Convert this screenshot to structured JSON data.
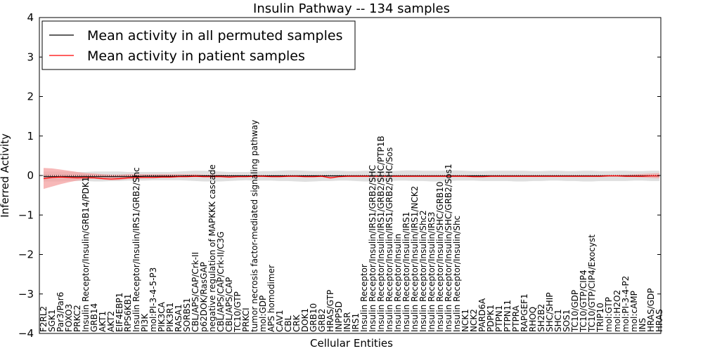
{
  "chart_data": {
    "type": "line",
    "title": "Insulin Pathway -- 134 samples",
    "xlabel": "Cellular Entities",
    "ylabel": "Inferred Activity",
    "ylim": [
      -4,
      4
    ],
    "yticks": [
      "4",
      "3",
      "2",
      "1",
      "0",
      "−1",
      "−2",
      "−3",
      "−4"
    ],
    "ytick_values": [
      4,
      3,
      2,
      1,
      0,
      -1,
      -2,
      -3,
      -4
    ],
    "legend": {
      "location": "top-left",
      "entries": [
        {
          "label": "Mean activity in all permuted samples",
          "color": "#000000"
        },
        {
          "label": "Mean activity in patient samples",
          "color": "#ff0000"
        }
      ]
    },
    "colors": {
      "permuted_line": "#000000",
      "patient_line": "#ff0000",
      "permuted_band": "#d9d9d9",
      "patient_band": "#f4a0a0"
    },
    "categories": [
      "F2RL2",
      "SGK1",
      "Par3/Par6",
      "FOXO3",
      "PRKC2",
      "Insulin Receptor/Insulin/GRB14/PDK1",
      "GRB14",
      "AKT1",
      "AKT2",
      "EIF4EBP1",
      "RPS6KB1",
      "Insulin Receptor/Insulin/IRS1/GRB2/Shc",
      "PI3K",
      "mol:PI-3-4-5-P3",
      "PIK3CA",
      "PIK3R1",
      "RASA1",
      "SORBS1",
      "CBL/APS/CAP/Crk-II",
      "p62DOK/RasGAP",
      "negative regulation of MAPKKK cascade",
      "CBL/APS/CAP/Crk-II/C3G",
      "CBL/APS/CAP",
      "TC10/GTP",
      "PRKCI",
      "tumor necrosis factor-mediated signaling pathway",
      "mol:GDP",
      "APS homodimer",
      "CAV1",
      "CBL",
      "CRK",
      "DOK1",
      "GRB10",
      "GRB2",
      "HRAS/GTP",
      "INPP5D",
      "INSR",
      "IRS1",
      "Insulin Receptor",
      "Insulin Receptor/Insulin/IRS1/GRB2/SHC",
      "Insulin Receptor/Insulin/IRS1/GRB2/SHC/PTP1B",
      "Insulin Receptor/Insulin/IRS1/GRB2/SHC/Sos",
      "Insulin Receptor/Insulin",
      "Insulin Receptor/Insulin/IRS1",
      "Insulin Receptor/Insulin/IRS1/NCK2",
      "Insulin Receptor/Insulin/Shc2",
      "Insulin Receptor/Insulin/IRS3",
      "Insulin Receptor/Insulin/SHC/GRB10",
      "Insulin Receptor/Insulin/SHC/GRB2/Sos1",
      "Insulin Receptor/Insulin/Shc",
      "NCK1",
      "NCK2",
      "PARD6A",
      "PDPK1",
      "PTPN1",
      "PTPN11",
      "PTPRA",
      "RAPGEF1",
      "RHOQ",
      "SH2B2",
      "SHC/SHIP",
      "SHC1",
      "SOS1",
      "TC10/GDP",
      "TC10/GTP/CIP4",
      "TC10/GTP/CIP4/Exocyst",
      "TRIP10",
      "mol:GTP",
      "mol:H2O2",
      "mol:PI-3-4-P2",
      "mol:cAMP",
      "INS",
      "HRAS/GDP",
      "HRAS"
    ],
    "series": [
      {
        "name": "Mean activity in all permuted samples",
        "values": [
          -0.03,
          -0.03,
          -0.03,
          -0.03,
          -0.03,
          -0.03,
          -0.03,
          -0.03,
          -0.03,
          -0.03,
          -0.03,
          -0.03,
          -0.02,
          -0.02,
          -0.02,
          -0.02,
          -0.02,
          -0.01,
          -0.01,
          -0.01,
          -0.01,
          -0.01,
          -0.01,
          -0.01,
          -0.01,
          -0.01,
          -0.01,
          -0.01,
          -0.01,
          -0.01,
          -0.01,
          -0.01,
          -0.01,
          -0.01,
          -0.01,
          -0.01,
          -0.01,
          -0.01,
          -0.01,
          -0.01,
          -0.01,
          -0.01,
          -0.01,
          -0.01,
          -0.01,
          -0.01,
          -0.01,
          -0.01,
          -0.01,
          -0.01,
          -0.01,
          -0.01,
          -0.01,
          -0.01,
          -0.01,
          -0.01,
          -0.01,
          -0.01,
          -0.01,
          -0.01,
          -0.01,
          -0.01,
          -0.01,
          -0.01,
          -0.01,
          -0.01,
          -0.01,
          -0.01,
          -0.01,
          -0.01,
          -0.01,
          -0.01,
          -0.01,
          -0.01
        ]
      },
      {
        "name": "Mean activity in patient samples",
        "values": [
          -0.08,
          -0.05,
          -0.04,
          -0.05,
          -0.06,
          -0.05,
          -0.06,
          -0.08,
          -0.09,
          -0.08,
          -0.06,
          -0.05,
          -0.05,
          -0.05,
          -0.04,
          -0.04,
          -0.03,
          -0.03,
          -0.02,
          -0.03,
          -0.03,
          -0.03,
          -0.04,
          -0.03,
          -0.03,
          -0.02,
          -0.02,
          -0.03,
          -0.03,
          -0.02,
          -0.02,
          -0.03,
          -0.03,
          -0.02,
          -0.06,
          -0.03,
          -0.02,
          -0.02,
          -0.02,
          -0.02,
          -0.02,
          -0.02,
          -0.02,
          -0.02,
          -0.02,
          -0.02,
          -0.02,
          -0.02,
          -0.02,
          -0.02,
          -0.02,
          -0.03,
          -0.03,
          -0.02,
          -0.02,
          -0.02,
          -0.02,
          -0.02,
          -0.02,
          -0.02,
          -0.02,
          -0.02,
          -0.02,
          -0.02,
          -0.02,
          -0.02,
          -0.02,
          -0.01,
          -0.01,
          -0.02,
          -0.02,
          -0.02,
          -0.01,
          -0.01
        ]
      }
    ],
    "bands": [
      {
        "name": "permuted spread",
        "lower": [
          -0.15,
          -0.15,
          -0.15,
          -0.14,
          -0.14,
          -0.14,
          -0.15,
          -0.15,
          -0.14,
          -0.14,
          -0.13,
          -0.13,
          -0.13,
          -0.12,
          -0.12,
          -0.12,
          -0.12,
          -0.13,
          -0.14,
          -0.15,
          -0.15,
          -0.15,
          -0.14,
          -0.13,
          -0.12,
          -0.13,
          -0.13,
          -0.13,
          -0.14,
          -0.14,
          -0.15,
          -0.16,
          -0.15,
          -0.14,
          -0.14,
          -0.13,
          -0.13,
          -0.14,
          -0.15,
          -0.15,
          -0.14,
          -0.14,
          -0.13,
          -0.13,
          -0.14,
          -0.14,
          -0.15,
          -0.15,
          -0.14,
          -0.13,
          -0.13,
          -0.13,
          -0.14,
          -0.14,
          -0.14,
          -0.14,
          -0.15,
          -0.15,
          -0.14,
          -0.14,
          -0.13,
          -0.13,
          -0.14,
          -0.14,
          -0.15,
          -0.15,
          -0.14,
          -0.14,
          -0.14,
          -0.14,
          -0.13,
          -0.13,
          -0.14,
          -0.14
        ],
        "upper": [
          0.1,
          0.1,
          0.1,
          0.1,
          0.09,
          0.09,
          0.1,
          0.1,
          0.1,
          0.1,
          0.09,
          0.09,
          0.09,
          0.09,
          0.09,
          0.09,
          0.1,
          0.11,
          0.12,
          0.12,
          0.11,
          0.1,
          0.09,
          0.09,
          0.09,
          0.1,
          0.11,
          0.11,
          0.12,
          0.13,
          0.13,
          0.12,
          0.11,
          0.11,
          0.12,
          0.12,
          0.11,
          0.11,
          0.12,
          0.12,
          0.11,
          0.11,
          0.12,
          0.13,
          0.13,
          0.12,
          0.12,
          0.12,
          0.13,
          0.13,
          0.12,
          0.11,
          0.11,
          0.12,
          0.12,
          0.12,
          0.12,
          0.12,
          0.11,
          0.11,
          0.12,
          0.12,
          0.11,
          0.11,
          0.12,
          0.12,
          0.11,
          0.11,
          0.12,
          0.12,
          0.11,
          0.11,
          0.12,
          0.12
        ]
      },
      {
        "name": "patient spread",
        "lower": [
          -0.34,
          -0.28,
          -0.22,
          -0.17,
          -0.13,
          -0.1,
          -0.08,
          -0.1,
          -0.12,
          -0.11,
          -0.09,
          -0.08,
          -0.07,
          -0.07,
          -0.06,
          -0.06,
          -0.05,
          -0.05,
          -0.04,
          -0.05,
          -0.05,
          -0.05,
          -0.06,
          -0.05,
          -0.05,
          -0.04,
          -0.04,
          -0.05,
          -0.05,
          -0.04,
          -0.04,
          -0.05,
          -0.05,
          -0.04,
          -0.08,
          -0.05,
          -0.04,
          -0.04,
          -0.04,
          -0.04,
          -0.04,
          -0.04,
          -0.04,
          -0.04,
          -0.04,
          -0.04,
          -0.04,
          -0.04,
          -0.04,
          -0.04,
          -0.04,
          -0.05,
          -0.05,
          -0.04,
          -0.04,
          -0.04,
          -0.04,
          -0.04,
          -0.04,
          -0.04,
          -0.04,
          -0.04,
          -0.04,
          -0.04,
          -0.04,
          -0.04,
          -0.04,
          -0.03,
          -0.03,
          -0.04,
          -0.04,
          -0.05,
          -0.06,
          -0.07
        ],
        "upper": [
          0.19,
          0.18,
          0.15,
          0.12,
          0.09,
          0.06,
          0.05,
          0.03,
          0.02,
          0.02,
          0.03,
          0.03,
          0.03,
          0.03,
          0.03,
          0.03,
          0.03,
          0.03,
          0.03,
          0.02,
          0.02,
          0.02,
          0.01,
          0.01,
          0.01,
          0.01,
          0.01,
          0.01,
          0.01,
          0.01,
          0.01,
          0.01,
          0.01,
          0.01,
          0.0,
          0.0,
          0.01,
          0.01,
          0.01,
          0.01,
          0.01,
          0.01,
          0.01,
          0.01,
          0.01,
          0.01,
          0.01,
          0.01,
          0.01,
          0.01,
          0.01,
          0.01,
          0.01,
          0.01,
          0.01,
          0.01,
          0.01,
          0.01,
          0.01,
          0.01,
          0.01,
          0.01,
          0.01,
          0.01,
          0.01,
          0.01,
          0.01,
          0.02,
          0.02,
          0.02,
          0.03,
          0.04,
          0.05,
          0.06
        ]
      }
    ]
  }
}
